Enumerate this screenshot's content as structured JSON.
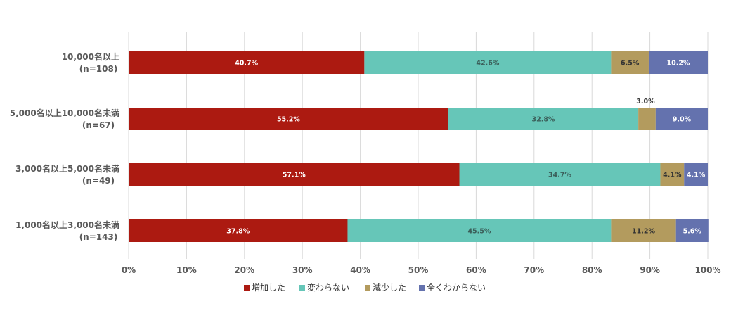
{
  "chart_data": {
    "type": "bar",
    "orientation": "horizontal",
    "stacked": true,
    "title": "",
    "xlabel": "",
    "ylabel": "",
    "xlim": [
      0,
      100
    ],
    "x_ticks": [
      "0%",
      "10%",
      "20%",
      "30%",
      "40%",
      "50%",
      "60%",
      "70%",
      "80%",
      "90%",
      "100%"
    ],
    "grid": true,
    "legend_position": "bottom",
    "categories": [
      {
        "label": "10,000名以上",
        "sub": "(n=108)"
      },
      {
        "label": "5,000名以上10,000名未満",
        "sub": "(n=67)"
      },
      {
        "label": "3,000名以上5,000名未満",
        "sub": "(n=49)"
      },
      {
        "label": "1,000名以上3,000名未満",
        "sub": "(n=143)"
      }
    ],
    "series": [
      {
        "name": "増加した",
        "color": "#ac1a11",
        "label_color": "#ffffff",
        "values": [
          40.7,
          55.2,
          57.1,
          37.8
        ],
        "labels": [
          "40.7%",
          "55.2%",
          "57.1%",
          "37.8%"
        ]
      },
      {
        "name": "変わらない",
        "color": "#66c6b8",
        "label_color": "#3b5f5a",
        "values": [
          42.6,
          32.8,
          34.7,
          45.5
        ],
        "labels": [
          "42.6%",
          "32.8%",
          "34.7%",
          "45.5%"
        ]
      },
      {
        "name": "減少した",
        "color": "#b39b5e",
        "label_color": "#333333",
        "values": [
          6.5,
          3.0,
          4.1,
          11.2
        ],
        "labels": [
          "6.5%",
          "3.0%",
          "4.1%",
          "11.2%"
        ]
      },
      {
        "name": "全くわからない",
        "color": "#6472ae",
        "label_color": "#ffffff",
        "values": [
          10.2,
          9.0,
          4.1,
          5.6
        ],
        "labels": [
          "10.2%",
          "9.0%",
          "4.1%",
          "5.6%"
        ]
      }
    ]
  }
}
